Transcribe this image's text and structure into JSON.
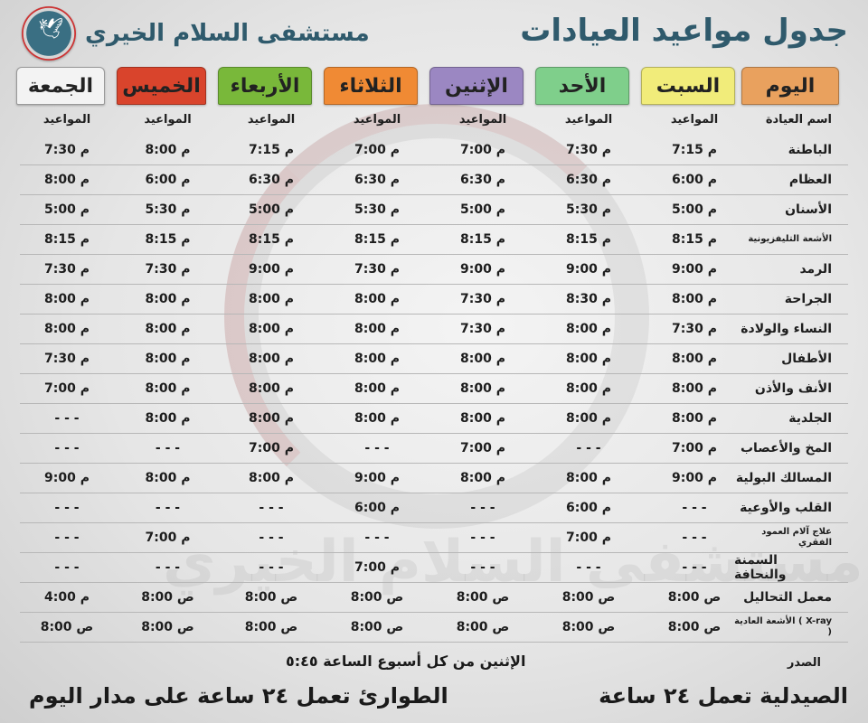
{
  "header": {
    "title": "جدول مواعيد العيادات",
    "hospital_name": "مستشفى السلام الخيري",
    "logo_icon": "dove-logo-icon"
  },
  "watermark_text": "مستشفى السلام الخيري",
  "days": [
    {
      "label": "اليوم",
      "color": "#e9a15e"
    },
    {
      "label": "السبت",
      "color": "#f1ec7a"
    },
    {
      "label": "الأحد",
      "color": "#7fcf8b"
    },
    {
      "label": "الإثنين",
      "color": "#9b87c2"
    },
    {
      "label": "الثلاثاء",
      "color": "#f08a34"
    },
    {
      "label": "الأربعاء",
      "color": "#79b83a"
    },
    {
      "label": "الخميس",
      "color": "#d9442c"
    },
    {
      "label": "الجمعة",
      "color": "#f3f3f3"
    }
  ],
  "column_headers": [
    "اسم العيادة",
    "المواعيد",
    "المواعيد",
    "المواعيد",
    "المواعيد",
    "المواعيد",
    "المواعيد",
    "المواعيد"
  ],
  "clinics": [
    {
      "name": "الباطنة",
      "times": [
        "7:15 م",
        "7:30 م",
        "7:00 م",
        "7:00 م",
        "7:15 م",
        "8:00 م",
        "7:30 م"
      ]
    },
    {
      "name": "العظام",
      "times": [
        "6:00 م",
        "6:30 م",
        "6:30 م",
        "6:30 م",
        "6:30 م",
        "6:00 م",
        "8:00 م"
      ]
    },
    {
      "name": "الأسنان",
      "times": [
        "5:00 م",
        "5:30 م",
        "5:00 م",
        "5:30 م",
        "5:00 م",
        "5:30 م",
        "5:00 م"
      ]
    },
    {
      "name": "الأشعة التليفزيونية",
      "small": true,
      "times": [
        "8:15 م",
        "8:15 م",
        "8:15 م",
        "8:15 م",
        "8:15 م",
        "8:15 م",
        "8:15 م"
      ]
    },
    {
      "name": "الرمد",
      "times": [
        "9:00 م",
        "9:00 م",
        "9:00 م",
        "7:30 م",
        "9:00 م",
        "7:30 م",
        "7:30 م"
      ]
    },
    {
      "name": "الجراحة",
      "times": [
        "8:00 م",
        "8:30 م",
        "7:30 م",
        "8:00 م",
        "8:00 م",
        "8:00 م",
        "8:00 م"
      ]
    },
    {
      "name": "النساء والولادة",
      "times": [
        "7:30 م",
        "8:00 م",
        "7:30 م",
        "8:00 م",
        "8:00 م",
        "8:00 م",
        "8:00 م"
      ]
    },
    {
      "name": "الأطفال",
      "times": [
        "8:00 م",
        "8:00 م",
        "8:00 م",
        "8:00 م",
        "8:00 م",
        "8:00 م",
        "7:30 م"
      ]
    },
    {
      "name": "الأنف والأذن",
      "times": [
        "8:00 م",
        "8:00 م",
        "8:00 م",
        "8:00 م",
        "8:00 م",
        "8:00 م",
        "7:00 م"
      ]
    },
    {
      "name": "الجلدية",
      "times": [
        "8:00 م",
        "8:00 م",
        "8:00 م",
        "8:00 م",
        "8:00 م",
        "8:00 م",
        "- - -"
      ]
    },
    {
      "name": "المخ والأعصاب",
      "times": [
        "7:00 م",
        "- - -",
        "7:00 م",
        "- - -",
        "7:00 م",
        "- - -",
        "- - -"
      ]
    },
    {
      "name": "المسالك البولية",
      "times": [
        "9:00 م",
        "8:00 م",
        "8:00 م",
        "9:00 م",
        "8:00 م",
        "8:00 م",
        "9:00 م"
      ]
    },
    {
      "name": "القلب والأوعية",
      "times": [
        "- - -",
        "6:00 م",
        "- - -",
        "6:00 م",
        "- - -",
        "- - -",
        "- - -"
      ]
    },
    {
      "name": "علاج آلام العمود الفقري",
      "small": true,
      "times": [
        "- - -",
        "7:00 م",
        "- - -",
        "- - -",
        "- - -",
        "7:00 م",
        "- - -"
      ]
    },
    {
      "name": "السمنة والنحافة",
      "times": [
        "- - -",
        "- - -",
        "- - -",
        "7:00 م",
        "- - -",
        "- - -",
        "- - -"
      ]
    },
    {
      "name": "معمل التحاليل",
      "times": [
        "8:00 ص",
        "8:00 ص",
        "8:00 ص",
        "8:00 ص",
        "8:00 ص",
        "8:00 ص",
        "4:00 م"
      ]
    },
    {
      "name": "الأشعة العادية ( X-ray )",
      "small": true,
      "times": [
        "8:00 ص",
        "8:00 ص",
        "8:00 ص",
        "8:00 ص",
        "8:00 ص",
        "8:00 ص",
        "8:00 ص"
      ]
    }
  ],
  "footer": {
    "chest_label": "الصدر",
    "chest_note": "الإثنين من كل أسبوع الساعة ٥:٤٥",
    "pharmacy": "الصيدلية تعمل ٢٤ ساعة",
    "emergency": "الطوارئ تعمل ٢٤ ساعة على مدار اليوم"
  }
}
